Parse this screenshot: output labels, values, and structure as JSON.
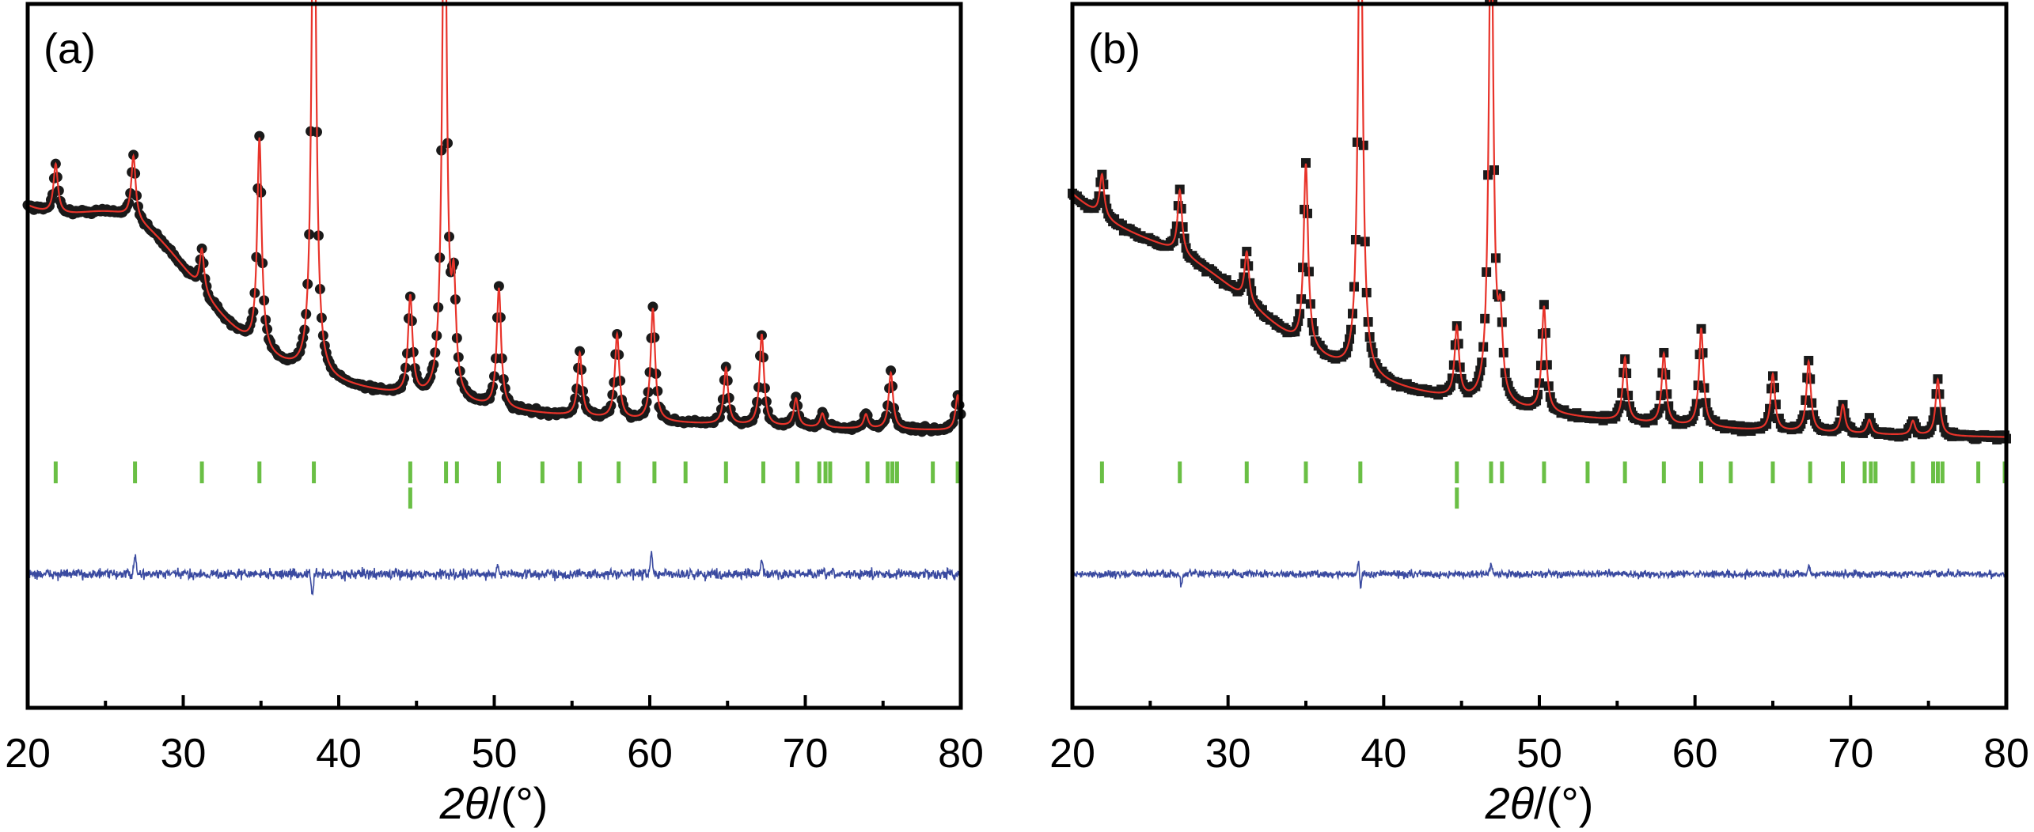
{
  "chart_data": [
    {
      "type": "line",
      "panel_label": "(a)",
      "xlabel_symbol": "2θ",
      "xlabel_unit": "/(°)",
      "xlim": [
        20,
        80
      ],
      "x_ticks": [
        20,
        30,
        40,
        50,
        60,
        70,
        80
      ],
      "x_minor_ticks": [
        25,
        35,
        45,
        55,
        65,
        75
      ],
      "ylabel": "",
      "y_tick_labels": false,
      "grid": false,
      "legend": "none",
      "observed_marker": "circle",
      "colors": {
        "observed": "#1a1a1a",
        "calculated": "#e8332a",
        "bragg": "#6abf45",
        "difference": "#3a4aa0",
        "frame": "#000000"
      },
      "background": {
        "start": 0.69,
        "hump_center": 27.0,
        "hump_height": 0.12,
        "hump_width": 5.5,
        "decay": 0.045,
        "floor": 0.39
      },
      "peaks": [
        {
          "x": 21.8,
          "h": 0.07
        },
        {
          "x": 26.8,
          "h": 0.09
        },
        {
          "x": 31.2,
          "h": 0.06
        },
        {
          "x": 34.9,
          "h": 0.3
        },
        {
          "x": 38.4,
          "h": 0.82
        },
        {
          "x": 44.6,
          "h": 0.14
        },
        {
          "x": 46.8,
          "h": 0.83
        },
        {
          "x": 47.4,
          "h": 0.14
        },
        {
          "x": 50.3,
          "h": 0.17
        },
        {
          "x": 55.5,
          "h": 0.09
        },
        {
          "x": 57.9,
          "h": 0.12
        },
        {
          "x": 60.2,
          "h": 0.16
        },
        {
          "x": 64.9,
          "h": 0.08
        },
        {
          "x": 67.2,
          "h": 0.13
        },
        {
          "x": 69.4,
          "h": 0.04
        },
        {
          "x": 71.1,
          "h": 0.02
        },
        {
          "x": 73.9,
          "h": 0.02
        },
        {
          "x": 75.5,
          "h": 0.08
        },
        {
          "x": 79.8,
          "h": 0.05
        }
      ],
      "bragg_positions_phase1": [
        21.8,
        26.9,
        31.2,
        34.9,
        38.4,
        44.6,
        46.9,
        47.6,
        50.3,
        53.1,
        55.5,
        58.0,
        60.3,
        62.3,
        64.9,
        67.3,
        69.5,
        70.9,
        71.3,
        71.6,
        74.0,
        75.3,
        75.6,
        75.9,
        78.2,
        79.8
      ],
      "bragg_positions_phase2": [
        44.6
      ],
      "difference_spikes": [
        {
          "x": 26.9,
          "h": 0.025
        },
        {
          "x": 38.3,
          "h": -0.03
        },
        {
          "x": 50.2,
          "h": 0.012
        },
        {
          "x": 60.1,
          "h": 0.03
        },
        {
          "x": 67.2,
          "h": 0.02
        }
      ],
      "difference_noise": 0.012
    },
    {
      "type": "line",
      "panel_label": "(b)",
      "xlabel_symbol": "2θ",
      "xlabel_unit": "/(°)",
      "xlim": [
        20,
        80
      ],
      "x_ticks": [
        20,
        30,
        40,
        50,
        60,
        70,
        80
      ],
      "x_minor_ticks": [
        25,
        35,
        45,
        55,
        65,
        75
      ],
      "ylabel": "",
      "y_tick_labels": false,
      "grid": false,
      "legend": "none",
      "observed_marker": "square",
      "colors": {
        "observed": "#1a1a1a",
        "calculated": "#e8332a",
        "bragg": "#6abf45",
        "difference": "#3a4aa0",
        "frame": "#000000"
      },
      "background": {
        "start": 0.72,
        "hump_center": 28.0,
        "hump_height": 0.06,
        "hump_width": 6.0,
        "decay": 0.045,
        "floor": 0.38
      },
      "peaks": [
        {
          "x": 21.9,
          "h": 0.06
        },
        {
          "x": 26.9,
          "h": 0.09
        },
        {
          "x": 31.2,
          "h": 0.07
        },
        {
          "x": 35.0,
          "h": 0.26
        },
        {
          "x": 38.5,
          "h": 0.78
        },
        {
          "x": 44.7,
          "h": 0.1
        },
        {
          "x": 46.9,
          "h": 0.76
        },
        {
          "x": 47.5,
          "h": 0.1
        },
        {
          "x": 50.3,
          "h": 0.15
        },
        {
          "x": 55.5,
          "h": 0.09
        },
        {
          "x": 58.0,
          "h": 0.1
        },
        {
          "x": 60.4,
          "h": 0.14
        },
        {
          "x": 65.0,
          "h": 0.08
        },
        {
          "x": 67.3,
          "h": 0.1
        },
        {
          "x": 69.5,
          "h": 0.04
        },
        {
          "x": 71.2,
          "h": 0.02
        },
        {
          "x": 74.0,
          "h": 0.02
        },
        {
          "x": 75.6,
          "h": 0.08
        }
      ],
      "bragg_positions_phase1": [
        21.9,
        26.9,
        31.2,
        35.0,
        38.5,
        44.7,
        46.9,
        47.6,
        50.3,
        53.1,
        55.5,
        58.0,
        60.4,
        62.3,
        65.0,
        67.4,
        69.5,
        70.9,
        71.3,
        71.6,
        74.0,
        75.3,
        75.6,
        75.9,
        78.2,
        79.9
      ],
      "bragg_positions_phase2": [
        44.7
      ],
      "difference_spikes": [
        {
          "x": 27.0,
          "h": -0.015
        },
        {
          "x": 38.4,
          "h": 0.02
        },
        {
          "x": 38.5,
          "h": -0.02
        },
        {
          "x": 46.9,
          "h": 0.015
        },
        {
          "x": 67.3,
          "h": 0.012
        }
      ],
      "difference_noise": 0.009
    }
  ]
}
